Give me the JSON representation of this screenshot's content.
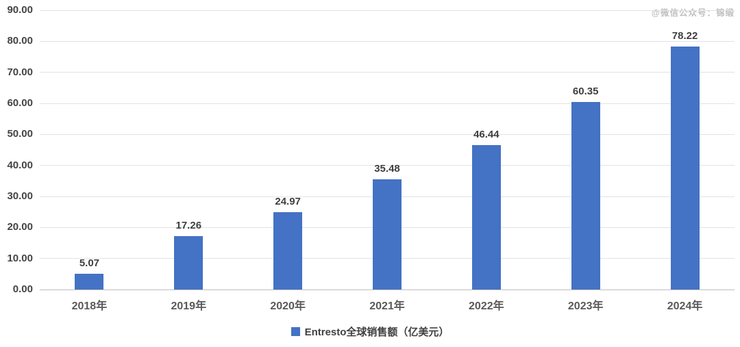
{
  "watermark": "@微信公众号：锦缎",
  "legend": {
    "label": "Entresto全球销售额（亿美元）",
    "marker_color": "#4472C4"
  },
  "colors": {
    "bar": "#4472C4",
    "gridline": "#e2e2e2",
    "axis_line": "#bfbfbf",
    "value_label_text": "#3f3f3f",
    "tick_label_text": "#595959"
  },
  "chart_data": {
    "type": "bar",
    "title": "",
    "series_name": "Entresto全球销售额（亿美元）",
    "categories": [
      "2018年",
      "2019年",
      "2020年",
      "2021年",
      "2022年",
      "2023年",
      "2024年"
    ],
    "values": [
      5.07,
      17.26,
      24.97,
      35.48,
      46.44,
      60.35,
      78.22
    ],
    "value_labels": [
      "5.07",
      "17.26",
      "24.97",
      "35.48",
      "46.44",
      "60.35",
      "78.22"
    ],
    "xlabel": "",
    "ylabel": "",
    "ylim": [
      0,
      90
    ],
    "ytick_interval": 10,
    "ytick_labels": [
      "0.00",
      "10.00",
      "20.00",
      "30.00",
      "40.00",
      "50.00",
      "60.00",
      "70.00",
      "80.00",
      "90.00"
    ],
    "grid": true,
    "legend_position": "bottom"
  }
}
